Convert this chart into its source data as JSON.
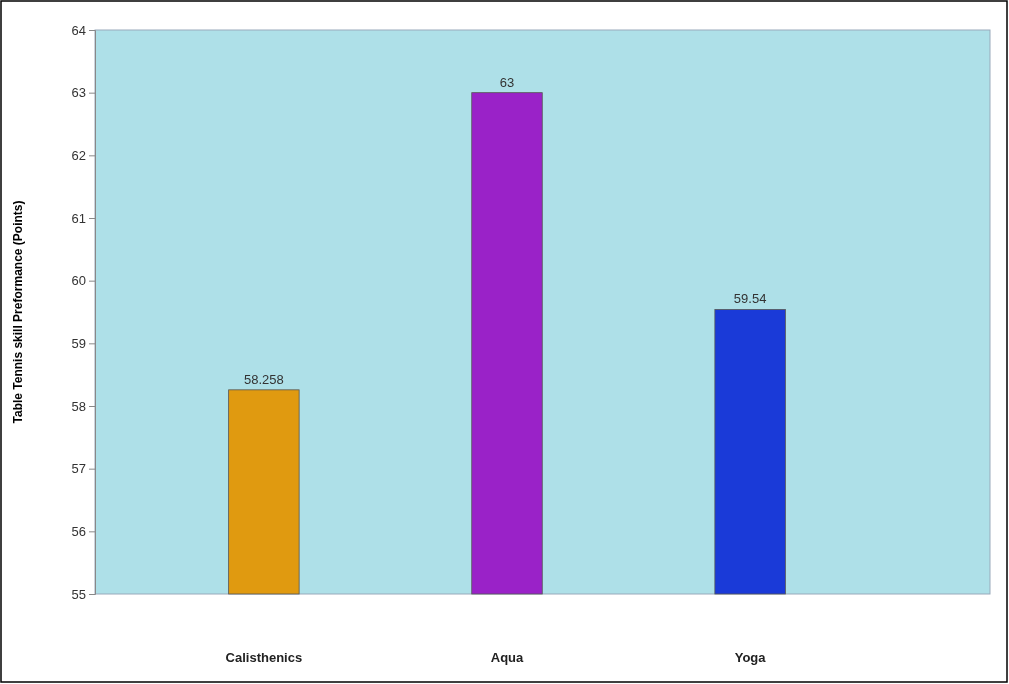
{
  "chart_data": {
    "type": "bar",
    "ylabel": "Table Tennis skill Preformance (Points)",
    "categories": [
      "Calisthenics",
      "Aqua",
      "Yoga"
    ],
    "values": [
      58.258,
      63,
      59.54
    ],
    "colors": [
      "#e09a10",
      "#9a22c8",
      "#1a3ad8"
    ],
    "ylim": [
      55,
      64
    ],
    "yticks": [
      55,
      56,
      57,
      58,
      59,
      60,
      61,
      62,
      63,
      64
    ],
    "data_labels": true
  }
}
